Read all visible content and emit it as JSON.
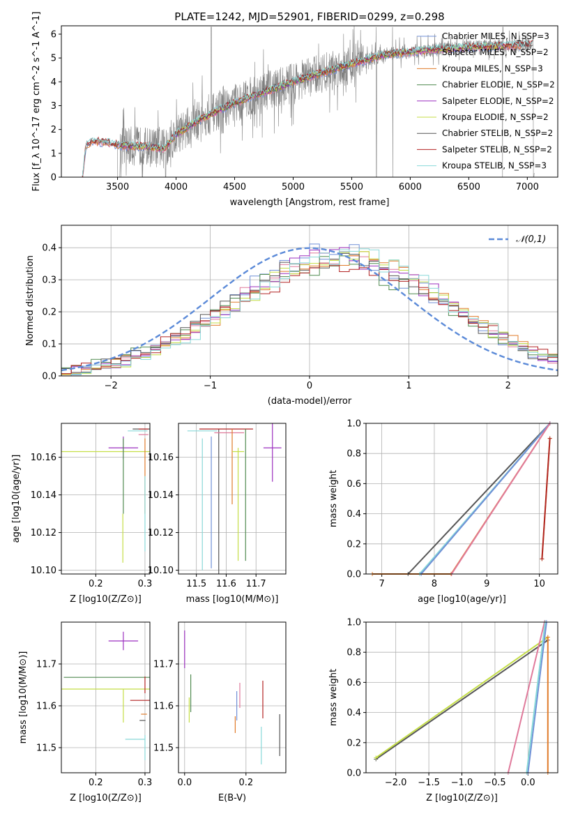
{
  "title": "PLATE=1242, MJD=52901, FIBERID=0299, z=0.298",
  "colors": {
    "Chabrier MILES": "#6f8fd6",
    "Salpeter MILES": "#e07a9b",
    "Kroupa MILES": "#e07b2a",
    "Chabrier ELODIE": "#4f8a4f",
    "Salpeter ELODIE": "#9b2fbf",
    "Kroupa ELODIE": "#c4de45",
    "Chabrier STELIB": "#555555",
    "Salpeter STELIB": "#b22222",
    "Kroupa STELIB": "#88d8d8",
    "data": "#808080",
    "normal": "#5b8ad8"
  },
  "chart_data": [
    {
      "id": "spectrum",
      "type": "line",
      "xlabel": "wavelength [Angstrom, rest frame]",
      "ylabel": "Flux [f_λ 10^-17 erg cm^-2 s^-1 A^-1]",
      "xlim": [
        3020,
        7260
      ],
      "ylim": [
        0,
        6.35
      ],
      "xticks": [
        3500,
        4000,
        4500,
        5000,
        5500,
        6000,
        6500,
        7000
      ],
      "yticks": [
        0,
        1,
        2,
        3,
        4,
        5,
        6
      ],
      "legend": [
        "Chabrier MILES, N_SSP=3",
        "Salpeter MILES, N_SSP=2",
        "Kroupa MILES, N_SSP=3",
        "Chabrier ELODIE, N_SSP=2",
        "Salpeter ELODIE, N_SSP=2",
        "Kroupa ELODIE, N_SSP=2",
        "Chabrier STELIB, N_SSP=2",
        "Salpeter STELIB, N_SSP=2",
        "Kroupa STELIB, N_SSP=3"
      ],
      "legend_position": "upper-right",
      "model_continuum": {
        "x": [
          3200,
          3230,
          3300,
          3400,
          3500,
          3600,
          3700,
          3800,
          3900,
          4000,
          4200,
          4400,
          4600,
          4800,
          5000,
          5200,
          5400,
          5600,
          5800,
          6000,
          6200,
          6500,
          6800,
          7050
        ],
        "y": [
          0.0,
          1.35,
          1.5,
          1.45,
          1.35,
          1.3,
          1.3,
          1.25,
          1.2,
          1.8,
          2.4,
          2.9,
          3.3,
          3.65,
          4.0,
          4.3,
          4.6,
          4.9,
          5.15,
          5.25,
          5.35,
          5.45,
          5.5,
          5.55
        ]
      },
      "data_noise_amplitude": 1.2
    },
    {
      "id": "residuals",
      "type": "histogram",
      "xlabel": "(data-model)/error",
      "ylabel": "Normed distribution",
      "xlim": [
        -2.5,
        2.5
      ],
      "ylim": [
        0,
        0.47
      ],
      "xticks": [
        -2,
        -1,
        0,
        1,
        2
      ],
      "yticks": [
        0.0,
        0.1,
        0.2,
        0.3,
        0.4
      ],
      "legend": [
        "𝒩(0,1)"
      ],
      "legend_position": "upper-right"
    },
    {
      "id": "age-vs-Z",
      "type": "errorbar",
      "xlabel": "Z [log10(Z/Z⊙)]",
      "ylabel": "age  [log10(age/yr)]",
      "xlim": [
        0.13,
        0.31
      ],
      "ylim": [
        10.098,
        10.178
      ],
      "xticks": [
        0.2,
        0.3
      ],
      "yticks": [
        10.1,
        10.12,
        10.14,
        10.16
      ],
      "points": [
        {
          "model": "Kroupa ELODIE",
          "x": 0.26,
          "y": 10.163,
          "xerr": 0.13,
          "yerr": 0.0
        },
        {
          "model": "Salpeter ELODIE",
          "x": 0.256,
          "y": 10.165,
          "xerr": 0.03,
          "yerr": 0.006
        },
        {
          "model": "Kroupa ELODIE",
          "x": 0.255,
          "y": 10.117,
          "xerr": 0.0,
          "yerr": 0.013
        },
        {
          "model": "Chabrier ELODIE",
          "x": 0.256,
          "y": 10.15,
          "xerr": 0.0,
          "yerr": 0.02
        },
        {
          "model": "Chabrier STELIB",
          "x": 0.295,
          "y": 10.175,
          "xerr": 0.02,
          "yerr": 0.0
        },
        {
          "model": "Kroupa STELIB",
          "x": 0.285,
          "y": 10.174,
          "xerr": 0.02,
          "yerr": 0.0
        },
        {
          "model": "Salpeter STELIB",
          "x": 0.297,
          "y": 10.175,
          "xerr": 0.01,
          "yerr": 0.0
        },
        {
          "model": "Salpeter MILES",
          "x": 0.297,
          "y": 10.172,
          "xerr": 0.01,
          "yerr": 0.0
        },
        {
          "model": "Kroupa MILES",
          "x": 0.3,
          "y": 10.15,
          "xerr": 0.0,
          "yerr": 0.02
        },
        {
          "model": "Kroupa STELIB",
          "x": 0.3,
          "y": 10.13,
          "xerr": 0.0,
          "yerr": 0.02
        }
      ]
    },
    {
      "id": "age-vs-mass",
      "type": "errorbar",
      "xlabel": "mass [log10(M/M⊙)]",
      "ylabel": "",
      "xlim": [
        11.44,
        11.8
      ],
      "ylim": [
        10.098,
        10.178
      ],
      "xticks": [
        11.5,
        11.6,
        11.7
      ],
      "yticks": [
        10.1,
        10.12,
        10.14,
        10.16
      ],
      "points": [
        {
          "model": "Kroupa STELIB",
          "x": 11.52,
          "y": 10.135,
          "xerr": 0.0,
          "yerr": 0.035
        },
        {
          "model": "Kroupa STELIB",
          "x": 11.52,
          "y": 10.174,
          "xerr": 0.05,
          "yerr": 0.0
        },
        {
          "model": "Chabrier MILES",
          "x": 11.55,
          "y": 10.136,
          "xerr": 0.0,
          "yerr": 0.035
        },
        {
          "model": "Chabrier STELIB",
          "x": 11.575,
          "y": 10.135,
          "xerr": 0.0,
          "yerr": 0.04
        },
        {
          "model": "Salpeter STELIB",
          "x": 11.6,
          "y": 10.175,
          "xerr": 0.09,
          "yerr": 0.0
        },
        {
          "model": "Salpeter MILES",
          "x": 11.61,
          "y": 10.173,
          "xerr": 0.05,
          "yerr": 0.0
        },
        {
          "model": "Kroupa MILES",
          "x": 11.62,
          "y": 10.155,
          "xerr": 0.0,
          "yerr": 0.02
        },
        {
          "model": "Kroupa ELODIE",
          "x": 11.64,
          "y": 10.163,
          "xerr": 0.02,
          "yerr": 0.0
        },
        {
          "model": "Kroupa ELODIE",
          "x": 11.64,
          "y": 10.135,
          "xerr": 0.0,
          "yerr": 0.03
        },
        {
          "model": "Chabrier ELODIE",
          "x": 11.665,
          "y": 10.14,
          "xerr": 0.0,
          "yerr": 0.035
        },
        {
          "model": "Salpeter ELODIE",
          "x": 11.755,
          "y": 10.165,
          "xerr": 0.03,
          "yerr": 0.018
        }
      ]
    },
    {
      "id": "cumulative-age",
      "type": "line",
      "xlabel": "age  [log10(age/yr)]",
      "ylabel": "mass weight",
      "xlim": [
        6.7,
        10.35
      ],
      "ylim": [
        0,
        1.0
      ],
      "xticks": [
        7,
        8,
        9,
        10
      ],
      "yticks": [
        0.0,
        0.2,
        0.4,
        0.6,
        0.8,
        1.0
      ],
      "series": [
        {
          "model": "Kroupa MILES",
          "x": [
            6.82,
            8.32,
            10.2
          ],
          "y": [
            0.0,
            0.0,
            1.0
          ]
        },
        {
          "model": "Chabrier STELIB",
          "x": [
            7.5,
            10.2
          ],
          "y": [
            0.0,
            1.0
          ]
        },
        {
          "model": "Kroupa STELIB",
          "x": [
            7.72,
            10.2
          ],
          "y": [
            0.0,
            1.0
          ]
        },
        {
          "model": "Chabrier MILES",
          "x": [
            7.75,
            10.2
          ],
          "y": [
            0.0,
            1.0
          ]
        },
        {
          "model": "Salpeter MILES",
          "x": [
            8.33,
            10.2
          ],
          "y": [
            0.0,
            1.0
          ]
        },
        {
          "model": "Kroupa ELODIE",
          "x": [
            10.05,
            10.2
          ],
          "y": [
            0.1,
            0.9
          ]
        },
        {
          "model": "Salpeter STELIB",
          "x": [
            10.05,
            10.2
          ],
          "y": [
            0.1,
            0.9
          ]
        }
      ]
    },
    {
      "id": "mass-vs-Z",
      "type": "errorbar",
      "xlabel": "Z [log10(Z/Z⊙)]",
      "ylabel": "mass [log10(M/M⊙)]",
      "xlim": [
        0.13,
        0.31
      ],
      "ylim": [
        11.44,
        11.8
      ],
      "xticks": [
        0.2,
        0.3
      ],
      "yticks": [
        11.5,
        11.6,
        11.7
      ],
      "points": [
        {
          "model": "Salpeter ELODIE",
          "x": 0.256,
          "y": 11.755,
          "xerr": 0.03,
          "yerr": 0.022
        },
        {
          "model": "Chabrier ELODIE",
          "x": 0.255,
          "y": 11.668,
          "xerr": 0.12,
          "yerr": 0.0
        },
        {
          "model": "Kroupa ELODIE",
          "x": 0.255,
          "y": 11.64,
          "xerr": 0.125,
          "yerr": 0.0
        },
        {
          "model": "Kroupa ELODIE",
          "x": 0.256,
          "y": 11.6,
          "xerr": 0.0,
          "yerr": 0.04
        },
        {
          "model": "Salpeter STELIB",
          "x": 0.29,
          "y": 11.613,
          "xerr": 0.02,
          "yerr": 0.0
        },
        {
          "model": "Kroupa STELIB",
          "x": 0.28,
          "y": 11.52,
          "xerr": 0.02,
          "yerr": 0.0
        },
        {
          "model": "Chabrier STELIB",
          "x": 0.295,
          "y": 11.565,
          "xerr": 0.006,
          "yerr": 0.0
        },
        {
          "model": "Kroupa MILES",
          "x": 0.298,
          "y": 11.58,
          "xerr": 0.006,
          "yerr": 0.0
        },
        {
          "model": "Kroupa STELIB",
          "x": 0.3,
          "y": 11.5,
          "xerr": 0.0,
          "yerr": 0.03
        },
        {
          "model": "Salpeter STELIB",
          "x": 0.3,
          "y": 11.65,
          "xerr": 0.0,
          "yerr": 0.02
        }
      ]
    },
    {
      "id": "mass-vs-ebv",
      "type": "errorbar",
      "xlabel": "E(B-V)",
      "ylabel": "",
      "xlim": [
        -0.02,
        0.33
      ],
      "ylim": [
        11.44,
        11.8
      ],
      "xticks": [
        0.0,
        0.2
      ],
      "yticks": [
        11.5,
        11.6,
        11.7
      ],
      "points": [
        {
          "model": "Salpeter ELODIE",
          "x": 0.0,
          "y": 11.735,
          "xerr": 0.0,
          "yerr": 0.045
        },
        {
          "model": "Chabrier ELODIE",
          "x": 0.02,
          "y": 11.63,
          "xerr": 0.0,
          "yerr": 0.045
        },
        {
          "model": "Kroupa ELODIE",
          "x": 0.015,
          "y": 11.59,
          "xerr": 0.0,
          "yerr": 0.03
        },
        {
          "model": "Chabrier MILES",
          "x": 0.17,
          "y": 11.6,
          "xerr": 0.0,
          "yerr": 0.035
        },
        {
          "model": "Kroupa MILES",
          "x": 0.165,
          "y": 11.555,
          "xerr": 0.0,
          "yerr": 0.02
        },
        {
          "model": "Salpeter MILES",
          "x": 0.18,
          "y": 11.625,
          "xerr": 0.0,
          "yerr": 0.03
        },
        {
          "model": "Salpeter STELIB",
          "x": 0.255,
          "y": 11.615,
          "xerr": 0.0,
          "yerr": 0.045
        },
        {
          "model": "Kroupa STELIB",
          "x": 0.25,
          "y": 11.505,
          "xerr": 0.0,
          "yerr": 0.045
        },
        {
          "model": "Chabrier STELIB",
          "x": 0.31,
          "y": 11.53,
          "xerr": 0.0,
          "yerr": 0.05
        }
      ]
    },
    {
      "id": "cumulative-Z",
      "type": "line",
      "xlabel": "Z [log10(Z/Z⊙)]",
      "ylabel": "mass weight",
      "xlim": [
        -2.45,
        0.45
      ],
      "ylim": [
        0,
        1.0
      ],
      "xticks": [
        -2.0,
        -1.5,
        -1.0,
        -0.5,
        0.0
      ],
      "yticks": [
        0.0,
        0.2,
        0.4,
        0.6,
        0.8,
        1.0
      ],
      "series": [
        {
          "model": "Chabrier STELIB",
          "x": [
            -2.3,
            0.3
          ],
          "y": [
            0.09,
            0.88
          ]
        },
        {
          "model": "Kroupa ELODIE",
          "x": [
            -2.3,
            0.3
          ],
          "y": [
            0.1,
            0.9
          ]
        },
        {
          "model": "Salpeter MILES",
          "x": [
            -0.3,
            0.25
          ],
          "y": [
            0.0,
            1.0
          ]
        },
        {
          "model": "Chabrier MILES",
          "x": [
            0.0,
            0.28
          ],
          "y": [
            0.0,
            1.0
          ]
        },
        {
          "model": "Kroupa STELIB",
          "x": [
            -0.02,
            0.26
          ],
          "y": [
            0.0,
            1.0
          ]
        },
        {
          "model": "Kroupa MILES",
          "x": [
            0.3,
            0.3
          ],
          "y": [
            0.0,
            0.9
          ]
        }
      ]
    }
  ]
}
